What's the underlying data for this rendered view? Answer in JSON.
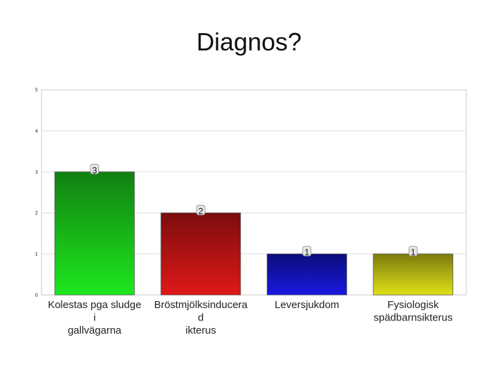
{
  "slide": {
    "title": "Diagnos?"
  },
  "chart_data": {
    "type": "bar",
    "categories": [
      [
        "Kolestas pga sludge",
        "i",
        "gallvägarna"
      ],
      [
        "Bröstmjölksinducera",
        "d",
        "ikterus"
      ],
      [
        "Leversjukdom"
      ],
      [
        "Fysiologisk",
        "spädbarnsikterus"
      ]
    ],
    "values": [
      3,
      2,
      1,
      1
    ],
    "data_labels": [
      "3",
      "2",
      "1",
      "1"
    ],
    "colors": [
      "#1ee81e",
      "#e01818",
      "#1818e0",
      "#e0e018"
    ],
    "title": "",
    "xlabel": "",
    "ylabel": "",
    "ylim": [
      0,
      5
    ],
    "yticks": [
      "0",
      "1",
      "2",
      "3",
      "4",
      "5"
    ],
    "grid": true,
    "legend": "none"
  }
}
